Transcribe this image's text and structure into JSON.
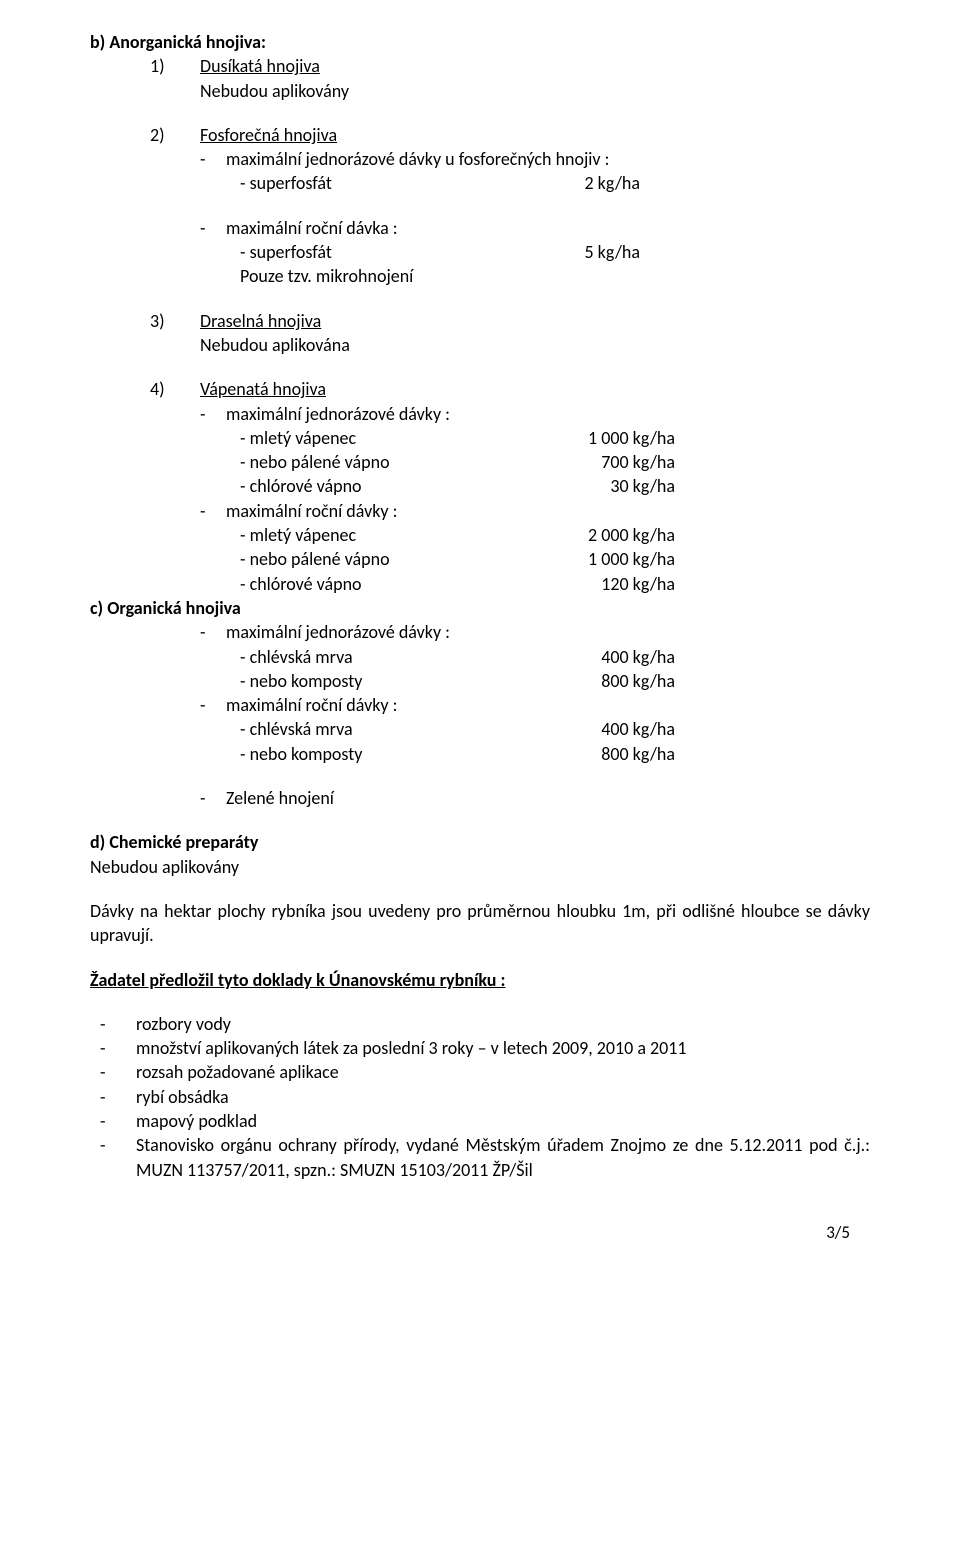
{
  "sec_b": {
    "heading": "b) Anorganická hnojiva",
    "item1_num": "1)",
    "item1_title": "Dusíkatá hnojiva",
    "item1_line": "Nebudou aplikovány",
    "item2_num": "2)",
    "item2_title": "Fosforečná hnojiva",
    "item2_sub1_label": "maximální jednorázové dávky u fosforečných hnojiv :",
    "item2_sub1_r1_label": "- superfosfát",
    "item2_sub1_r1_val": "2 kg/ha",
    "item2_sub2_label": "maximální roční dávka :",
    "item2_sub2_r1_label": "- superfosfát",
    "item2_sub2_r1_val": "5 kg/ha",
    "item2_sub2_line": "Pouze tzv. mikrohnojení",
    "item3_num": "3)",
    "item3_title": "Draselná hnojiva",
    "item3_line": "Nebudou aplikována",
    "item4_num": "4)",
    "item4_title": "Vápenatá hnojiva",
    "item4_sub1_label": "maximální jednorázové dávky :",
    "item4_sub1_r1_label": "- mletý vápenec",
    "item4_sub1_r1_val": "1 000 kg/ha",
    "item4_sub1_r2_label": "- nebo pálené vápno",
    "item4_sub1_r2_val": "700 kg/ha",
    "item4_sub1_r3_label": "- chlórové vápno",
    "item4_sub1_r3_val": "30 kg/ha",
    "item4_sub2_label": "maximální roční dávky :",
    "item4_sub2_r1_label": "- mletý vápenec",
    "item4_sub2_r1_val": "2 000 kg/ha",
    "item4_sub2_r2_label": "- nebo pálené vápno",
    "item4_sub2_r2_val": "1 000 kg/ha",
    "item4_sub2_r3_label": "- chlórové vápno",
    "item4_sub2_r3_val": "120 kg/ha"
  },
  "sec_c": {
    "heading": "c) Organická hnojiva",
    "sub1_label": "maximální jednorázové dávky :",
    "sub1_r1_label": "- chlévská mrva",
    "sub1_r1_val": "400 kg/ha",
    "sub1_r2_label": "- nebo komposty",
    "sub1_r2_val": "800 kg/ha",
    "sub2_label": "maximální roční dávky :",
    "sub2_r1_label": "- chlévská mrva",
    "sub2_r1_val": "400 kg/ha",
    "sub2_r2_label": "- nebo komposty",
    "sub2_r2_val": "800 kg/ha",
    "sub3_label": "Zelené hnojení"
  },
  "sec_d": {
    "heading": "d) Chemické preparáty",
    "line": "Nebudou aplikovány"
  },
  "para1": "Dávky na hektar plochy rybníka jsou uvedeny pro průměrnou hloubku 1m, při odlišné hloubce se dávky upravují.",
  "applicant_heading": "Žadatel předložil tyto doklady k Únanovskému rybníku  :",
  "appl_items": {
    "i1": "rozbory vody",
    "i2": "množství aplikovaných látek za poslední 3 roky – v  letech 2009, 2010 a 2011",
    "i3": "rozsah požadované aplikace",
    "i4": "rybí obsádka",
    "i5": "mapový podklad",
    "i6": "Stanovisko orgánu ochrany přírody, vydané Městským úřadem Znojmo ze dne 5.12.2011 pod č.j.: MUZN 113757/2011, spzn.: SMUZN 15103/2011 ŽP/Šil"
  },
  "dash": "-",
  "page_num": "3/5"
}
